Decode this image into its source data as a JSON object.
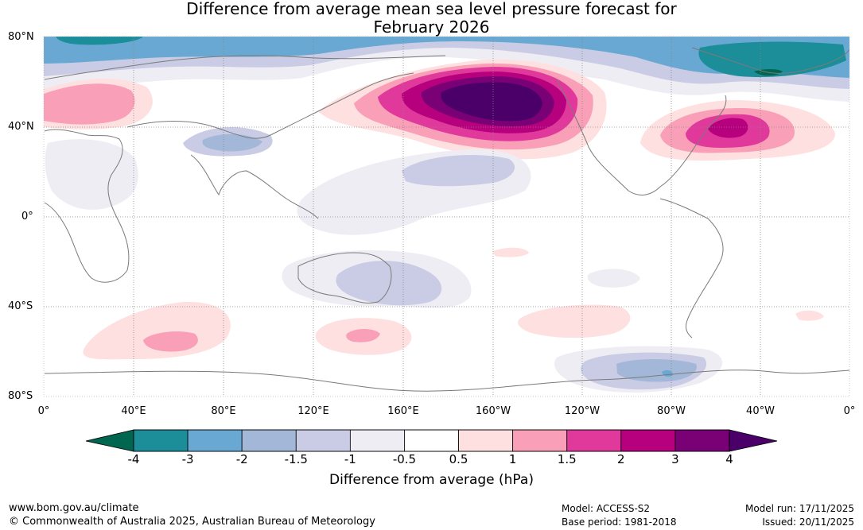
{
  "title": {
    "line1": "Difference from average mean sea level pressure forecast for",
    "line2": "February 2026"
  },
  "map": {
    "lat_labels": [
      "80°N",
      "40°N",
      "0°",
      "40°S",
      "80°S"
    ],
    "lon_labels": [
      "0°",
      "40°E",
      "80°E",
      "120°E",
      "160°E",
      "160°W",
      "120°W",
      "80°W",
      "40°W",
      "0°"
    ]
  },
  "colorbar": {
    "title": "Difference from average (hPa)",
    "ticks": [
      "-4",
      "-3",
      "-2",
      "-1.5",
      "-1",
      "-0.5",
      "0.5",
      "1",
      "1.5",
      "2",
      "3",
      "4"
    ],
    "colors": {
      "below_min": "#00664f",
      "bins": [
        "#1b8e99",
        "#69a8d2",
        "#a3b8d8",
        "#c9cce4",
        "#efedf4",
        "#ffffff",
        "#fee0e0",
        "#f99fb8",
        "#e0399b",
        "#b7007e",
        "#7a0076"
      ],
      "above_max": "#4a0068"
    }
  },
  "footer": {
    "website": "www.bom.gov.au/climate",
    "copyright": "© Commonwealth of Australia 2025, Australian Bureau of Meteorology",
    "model": "Model: ACCESS-S2",
    "base_period": "Base period: 1981-2018",
    "model_run": "Model run: 17/11/2025",
    "issued": "Issued: 20/11/2025"
  }
}
